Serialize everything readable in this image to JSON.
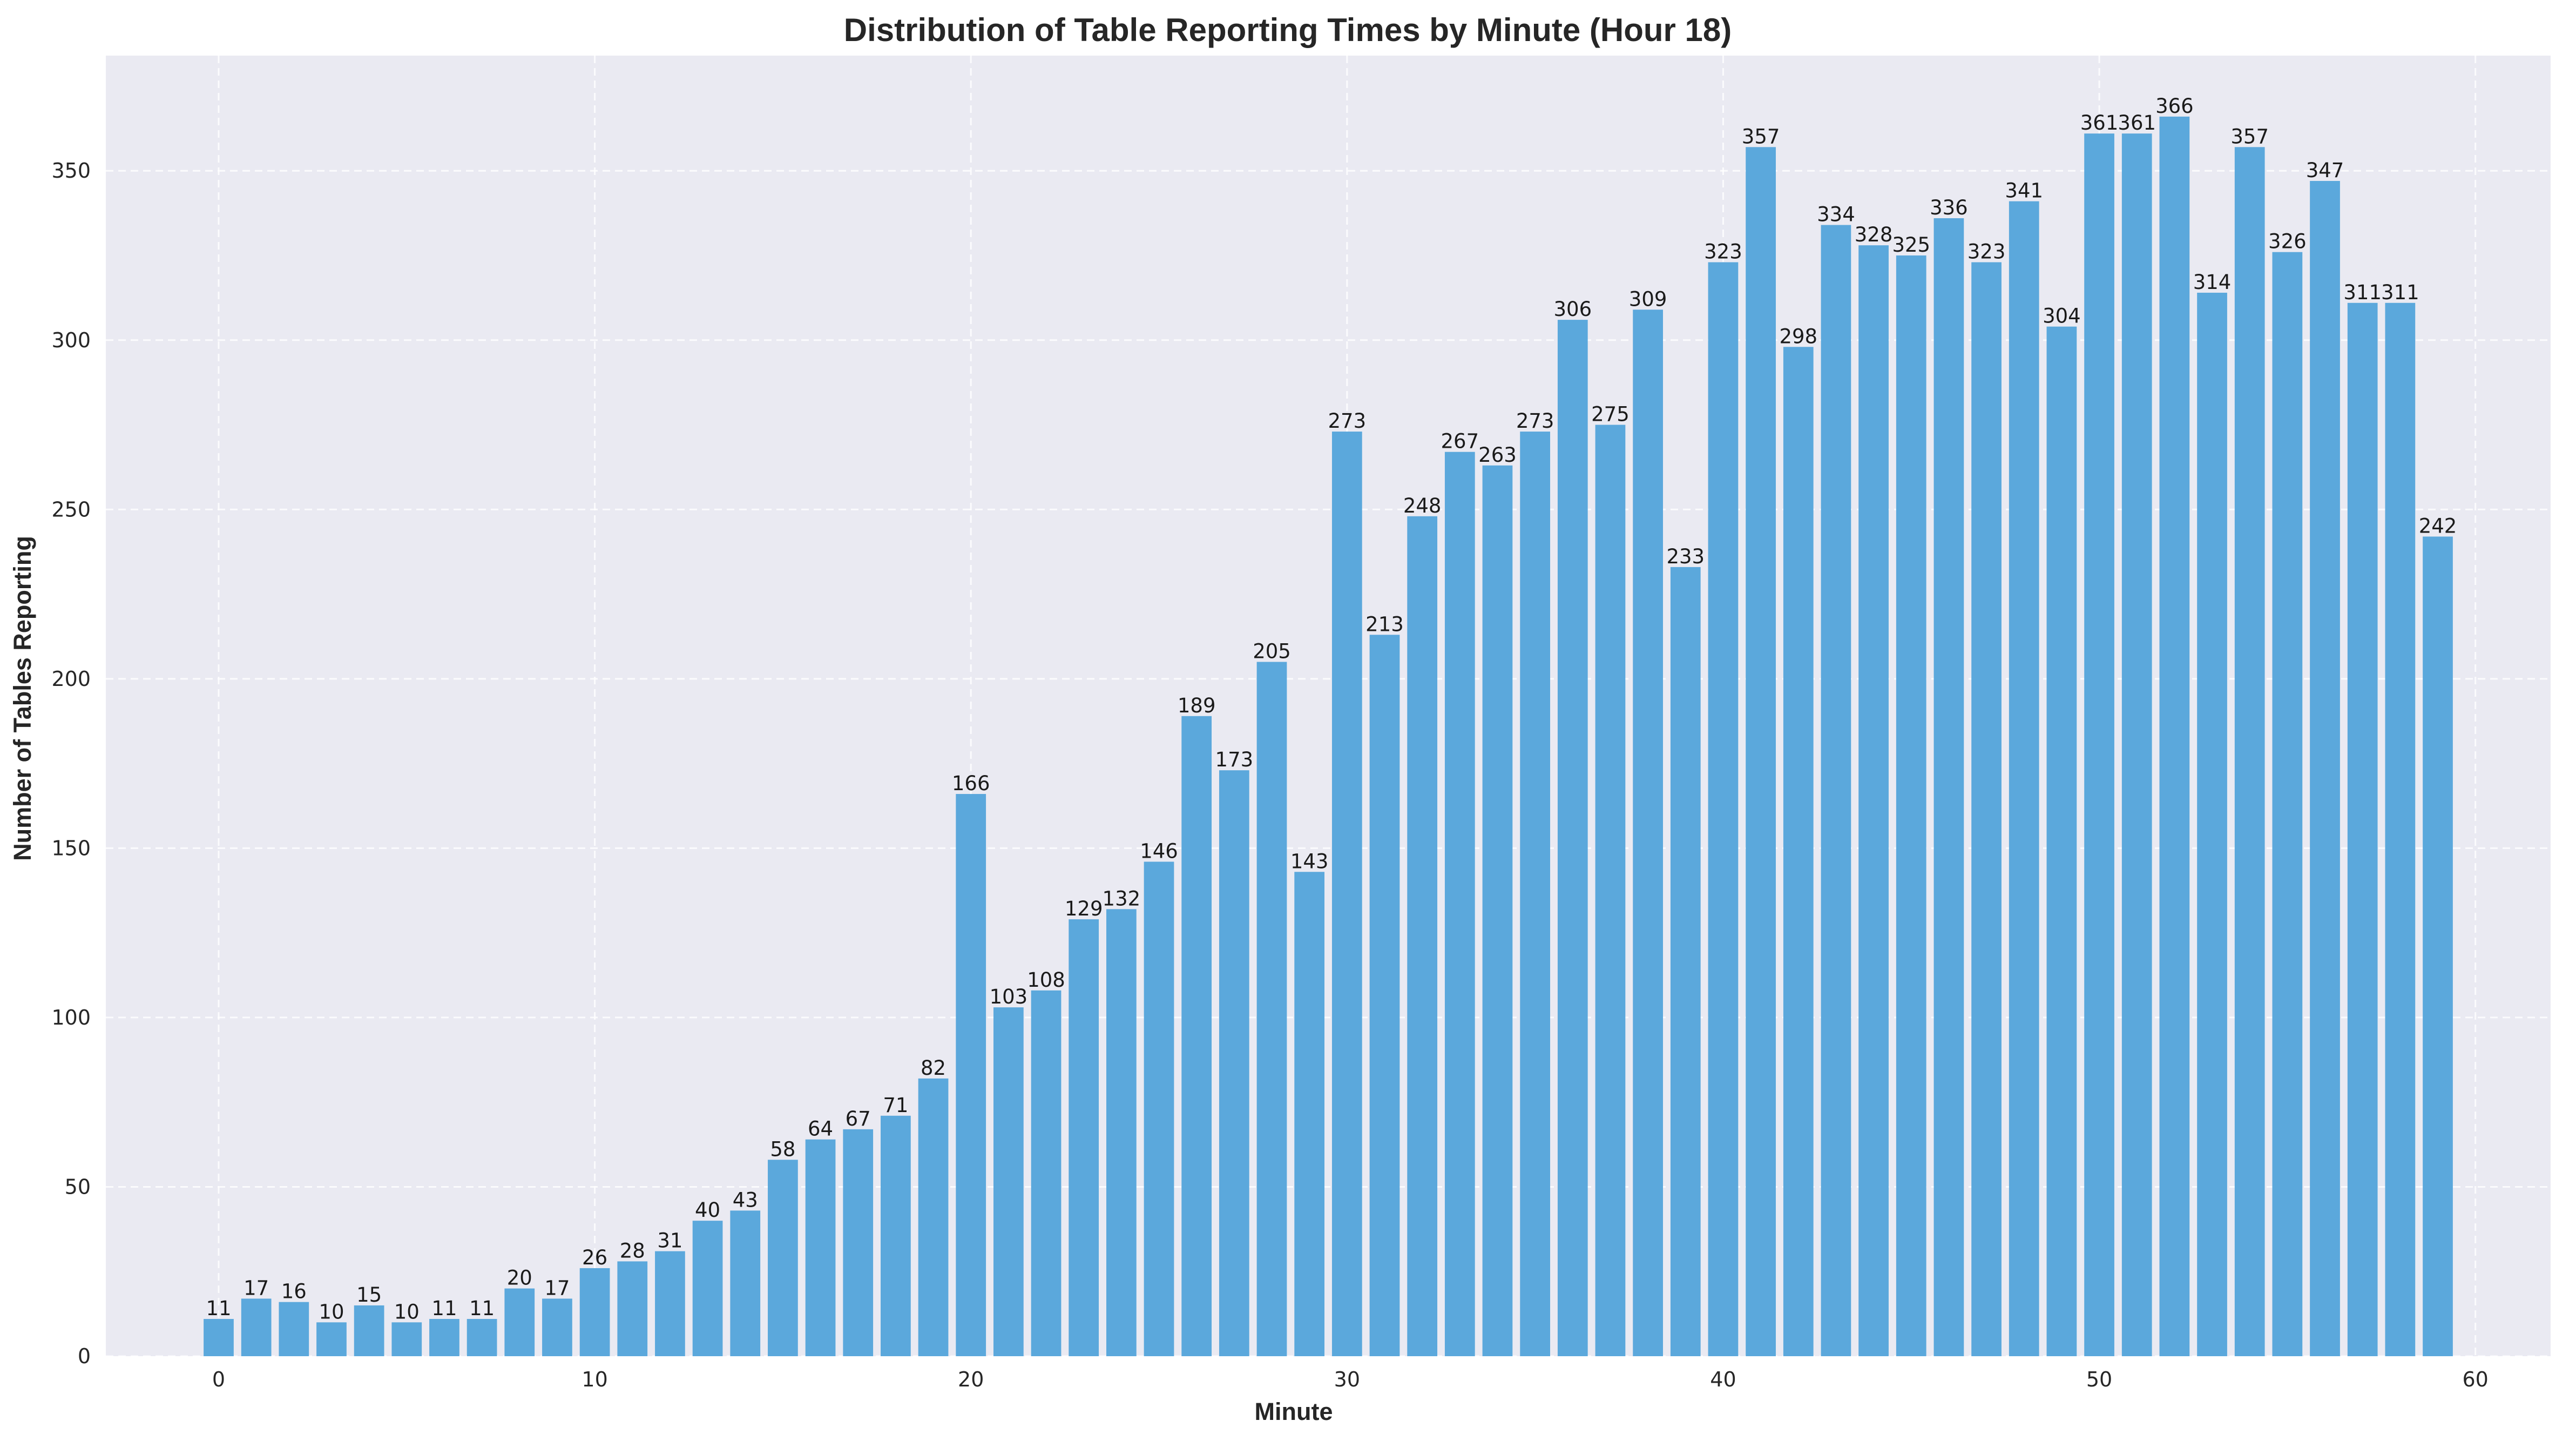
{
  "chart_data": {
    "type": "bar",
    "title": "Distribution of Table Reporting Times by Minute (Hour 18)",
    "xlabel": "Minute",
    "ylabel": "Number of Tables Reporting",
    "x": [
      0,
      1,
      2,
      3,
      4,
      5,
      6,
      7,
      8,
      9,
      10,
      11,
      12,
      13,
      14,
      15,
      16,
      17,
      18,
      19,
      20,
      21,
      22,
      23,
      24,
      25,
      26,
      27,
      28,
      29,
      30,
      31,
      32,
      33,
      34,
      35,
      36,
      37,
      38,
      39,
      40,
      41,
      42,
      43,
      44,
      45,
      46,
      47,
      48,
      49,
      50,
      51,
      52,
      53,
      54,
      55,
      56,
      57,
      58,
      59
    ],
    "values": [
      11,
      17,
      16,
      10,
      15,
      10,
      11,
      11,
      20,
      17,
      26,
      28,
      31,
      40,
      43,
      58,
      64,
      67,
      71,
      82,
      166,
      103,
      108,
      129,
      132,
      146,
      189,
      173,
      205,
      143,
      273,
      213,
      248,
      267,
      263,
      273,
      306,
      275,
      309,
      233,
      323,
      357,
      298,
      334,
      328,
      325,
      336,
      323,
      341,
      304,
      361,
      361,
      366,
      314,
      357,
      326,
      347,
      311,
      311,
      242
    ],
    "xlim": [
      -3,
      62
    ],
    "ylim": [
      0,
      384
    ],
    "xticks": [
      0,
      10,
      20,
      30,
      40,
      50,
      60
    ],
    "yticks": [
      0,
      50,
      100,
      150,
      200,
      250,
      300,
      350
    ],
    "grid": true,
    "legend": "none",
    "colors": {
      "bar": "#5ba8dc",
      "plot_background": "#eaeaf2",
      "grid": "#ffffff"
    }
  }
}
